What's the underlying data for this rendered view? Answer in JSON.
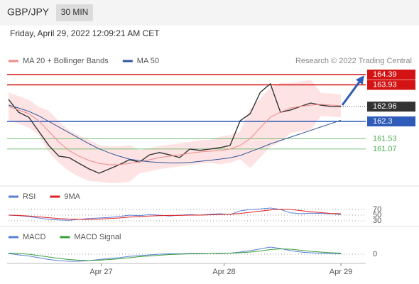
{
  "header": {
    "symbol": "GBP/JPY",
    "timeframe": "30 MIN",
    "timestamp": "Friday, April 29, 2022 12:09:21 AM CET"
  },
  "chart_data": [
    {
      "type": "price",
      "credit": "Research © 2022 Trading Central",
      "xlim": [
        0,
        33
      ],
      "xticks": [
        {
          "value": 9.2,
          "label": "Apr 27"
        },
        {
          "value": 21.4,
          "label": "Apr 28"
        },
        {
          "value": 33,
          "label": "Apr 29"
        }
      ],
      "ylim": [
        159.42,
        165.34
      ],
      "band_color": "#fde3e3",
      "series": [
        {
          "color": "#333333",
          "values": [
            163.28,
            162.71,
            162.49,
            161.86,
            161.23,
            160.75,
            160.69,
            160.43,
            160.18,
            159.99,
            160.18,
            160.37,
            160.59,
            160.49,
            160.81,
            160.91,
            160.81,
            160.69,
            161.07,
            161.01,
            161.07,
            161.13,
            161.23,
            162.33,
            162.65,
            163.6,
            163.98,
            162.71,
            162.81,
            162.97,
            163.12,
            163.03,
            162.97,
            162.96
          ]
        },
        {
          "name": "MA 20 + Bollinger Bands",
          "color": "#f08a8a",
          "values": [
            162.97,
            162.81,
            162.65,
            162.33,
            161.86,
            161.38,
            161.0,
            160.75,
            160.56,
            160.43,
            160.37,
            160.37,
            160.43,
            160.5,
            160.59,
            160.69,
            160.75,
            160.81,
            160.88,
            160.94,
            160.97,
            161.0,
            161.07,
            161.23,
            161.54,
            162.02,
            162.49,
            162.71,
            162.9,
            162.97,
            163.03,
            163.06,
            163.03,
            163.0
          ],
          "upper": [
            163.57,
            163.41,
            163.25,
            162.93,
            162.76,
            162.28,
            161.9,
            161.65,
            161.46,
            161.23,
            161.17,
            161.17,
            161.23,
            161.0,
            161.09,
            161.19,
            161.25,
            161.31,
            161.38,
            161.44,
            161.47,
            161.6,
            161.67,
            161.83,
            162.84,
            163.32,
            163.79,
            164.01,
            164.0,
            164.07,
            164.13,
            163.56,
            163.53,
            163.5
          ],
          "lower": [
            162.37,
            162.21,
            162.05,
            161.73,
            160.96,
            160.48,
            160.1,
            159.85,
            159.66,
            159.63,
            159.57,
            159.57,
            159.63,
            160.0,
            160.09,
            160.19,
            160.25,
            160.31,
            160.38,
            160.44,
            160.47,
            160.4,
            160.47,
            160.63,
            160.24,
            160.72,
            161.19,
            161.41,
            161.8,
            161.87,
            161.93,
            162.56,
            162.53,
            162.5
          ]
        },
        {
          "name": "MA 50",
          "color": "#2f5597",
          "values": [
            163.03,
            162.9,
            162.75,
            162.55,
            162.3,
            162.05,
            161.8,
            161.55,
            161.3,
            161.08,
            160.9,
            160.75,
            160.62,
            160.55,
            160.5,
            160.47,
            160.45,
            160.45,
            160.47,
            160.52,
            160.57,
            160.62,
            160.68,
            160.78,
            160.95,
            161.12,
            161.3,
            161.45,
            161.6,
            161.75,
            161.9,
            162.05,
            162.2,
            162.35
          ]
        }
      ],
      "levels": [
        {
          "value": 164.39,
          "color": "#d41414",
          "boxed": true
        },
        {
          "value": 163.93,
          "color": "#d41414",
          "boxed": true
        },
        {
          "value": 162.3,
          "color": "#2f5cb8",
          "boxed": true
        },
        {
          "value": 161.53,
          "color": "#4caf50",
          "boxed": false
        },
        {
          "value": 161.07,
          "color": "#4caf50",
          "boxed": false
        }
      ],
      "last_price": 162.96,
      "last_price_color": "#333333"
    },
    {
      "type": "line",
      "ylim": [
        10,
        100
      ],
      "yticks": [
        30,
        50,
        70
      ],
      "series": [
        {
          "name": "RSI",
          "color": "#5b7fd6",
          "values": [
            50,
            48,
            45,
            40,
            35,
            33,
            32,
            35,
            38,
            40,
            42,
            45,
            50,
            48,
            52,
            50,
            47,
            50,
            52,
            50,
            53,
            55,
            52,
            65,
            70,
            72,
            75,
            70,
            58,
            55,
            57,
            56,
            55,
            52
          ]
        },
        {
          "name": "9MA",
          "color": "#e02020",
          "values": [
            50,
            49,
            47,
            44,
            41,
            38,
            36,
            35,
            35,
            36,
            38,
            40,
            43,
            45,
            47,
            48,
            49,
            49,
            50,
            50,
            51,
            52,
            53,
            56,
            60,
            64,
            68,
            71,
            70,
            66,
            62,
            59,
            56,
            55
          ]
        }
      ]
    },
    {
      "type": "line",
      "ylim": [
        -0.28,
        0.66
      ],
      "yticks": [
        0
      ],
      "series": [
        {
          "name": "MACD",
          "color": "#5b7fd6",
          "values": [
            0.02,
            -0.02,
            -0.05,
            -0.1,
            -0.15,
            -0.18,
            -0.2,
            -0.2,
            -0.18,
            -0.15,
            -0.12,
            -0.1,
            -0.06,
            -0.04,
            -0.02,
            0,
            0.01,
            0.01,
            0.02,
            0.02,
            0.02,
            0.03,
            0.03,
            0.06,
            0.1,
            0.15,
            0.2,
            0.16,
            0.1,
            0.06,
            0.04,
            0.03,
            0.02,
            0.01
          ]
        },
        {
          "name": "MACD Signal",
          "color": "#3aa03a",
          "values": [
            0.03,
            0.02,
            0,
            -0.04,
            -0.08,
            -0.12,
            -0.15,
            -0.17,
            -0.18,
            -0.17,
            -0.15,
            -0.13,
            -0.1,
            -0.07,
            -0.05,
            -0.03,
            -0.01,
            0,
            0.01,
            0.01,
            0.02,
            0.02,
            0.03,
            0.04,
            0.06,
            0.09,
            0.13,
            0.15,
            0.14,
            0.11,
            0.08,
            0.06,
            0.04,
            0.03
          ]
        }
      ]
    }
  ]
}
